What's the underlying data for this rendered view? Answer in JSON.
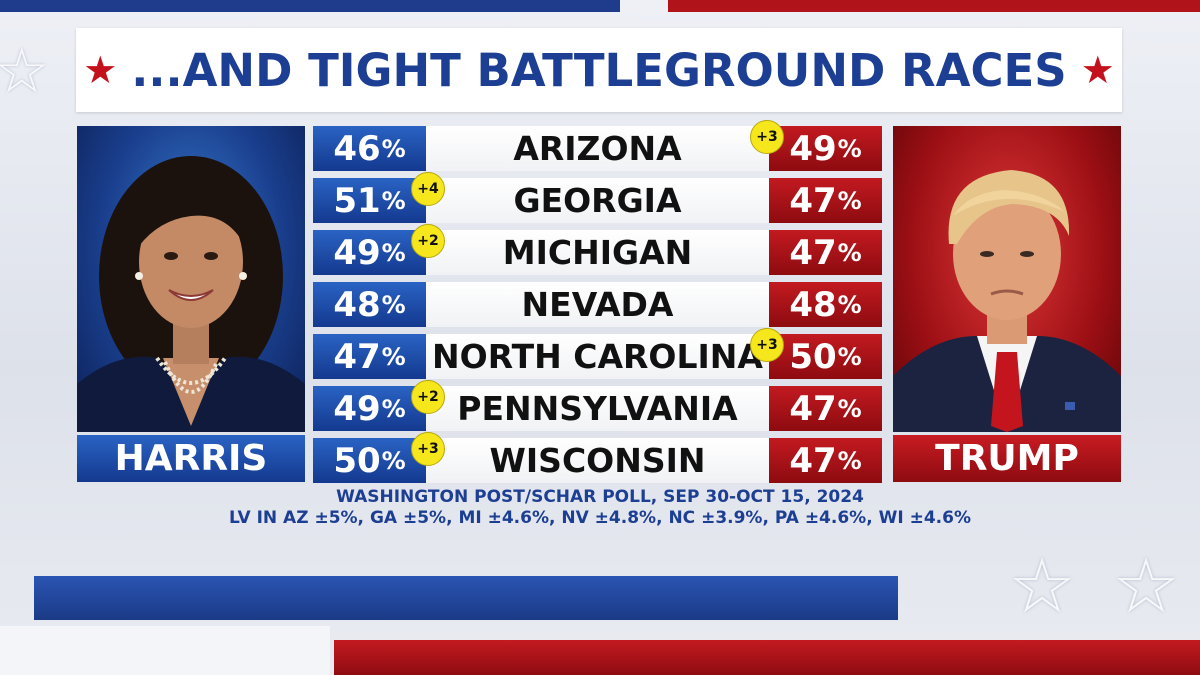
{
  "title": "...AND TIGHT BATTLEGROUND RACES",
  "colors": {
    "democrat": "#1f4fae",
    "republican": "#b0141a",
    "title_text": "#1d3f93",
    "badge": "#f6e61c"
  },
  "icons": {
    "title_star": "★",
    "bg_star": "☆"
  },
  "candidates": {
    "left": {
      "name": "HARRIS",
      "photo": "harris-portrait"
    },
    "right": {
      "name": "TRUMP",
      "photo": "trump-portrait"
    }
  },
  "states": [
    {
      "name": "ARIZONA",
      "harris": "46",
      "trump": "49",
      "lead": "+3",
      "lead_side": "trump"
    },
    {
      "name": "GEORGIA",
      "harris": "51",
      "trump": "47",
      "lead": "+4",
      "lead_side": "harris"
    },
    {
      "name": "MICHIGAN",
      "harris": "49",
      "trump": "47",
      "lead": "+2",
      "lead_side": "harris"
    },
    {
      "name": "NEVADA",
      "harris": "48",
      "trump": "48",
      "lead": "",
      "lead_side": ""
    },
    {
      "name": "NORTH CAROLINA",
      "harris": "47",
      "trump": "50",
      "lead": "+3",
      "lead_side": "trump"
    },
    {
      "name": "PENNSYLVANIA",
      "harris": "49",
      "trump": "47",
      "lead": "+2",
      "lead_side": "harris"
    },
    {
      "name": "WISCONSIN",
      "harris": "50",
      "trump": "47",
      "lead": "+3",
      "lead_side": "harris"
    }
  ],
  "percent_sign": "%",
  "source": {
    "line1": "WASHINGTON POST/SCHAR POLL, SEP 30-OCT 15, 2024",
    "line2": "LV IN AZ ±5%, GA ±5%, MI ±4.6%, NV ±4.8%, NC ±3.9%, PA ±4.6%, WI ±4.6%"
  }
}
